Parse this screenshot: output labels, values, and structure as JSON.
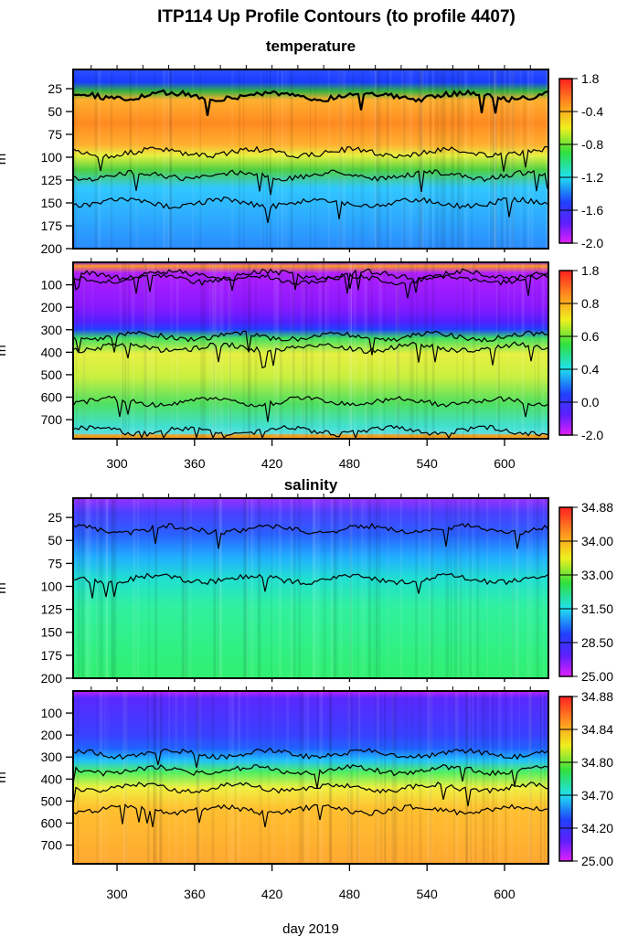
{
  "title": "ITP114 Up Profile Contours (to profile 4407)",
  "xlabel": "day 2019",
  "ylabel": "m",
  "section_titles": [
    "temperature",
    "salinity"
  ],
  "chart_data": [
    {
      "type": "heatmap",
      "variable": "temperature",
      "range": "upper",
      "xlim": [
        266,
        634
      ],
      "ylim": [
        200,
        4
      ],
      "xticks": [
        300,
        360,
        420,
        480,
        540,
        600
      ],
      "yticks": [
        25,
        50,
        75,
        100,
        125,
        150,
        175,
        200
      ],
      "colorbar_ticks": [
        "1.8",
        "-0.4",
        "-0.8",
        "-1.2",
        "-1.6",
        "-2.0"
      ],
      "contour_depths_approx": [
        33,
        95,
        120,
        150
      ],
      "colors": [
        "#1a44ff",
        "#ffa024",
        "#f0e040",
        "#50d040",
        "#30b8ff",
        "#2a8cff"
      ]
    },
    {
      "type": "heatmap",
      "variable": "temperature",
      "range": "full",
      "xlim": [
        266,
        634
      ],
      "ylim": [
        785,
        0
      ],
      "xticks": [
        300,
        360,
        420,
        480,
        540,
        600
      ],
      "yticks": [
        100,
        200,
        300,
        400,
        500,
        600,
        700
      ],
      "colorbar_ticks": [
        "1.8",
        "0.8",
        "0.6",
        "0.4",
        "0.0",
        "-2.0"
      ],
      "contour_depths_approx": [
        55,
        75,
        330,
        380,
        620,
        750
      ],
      "colors": [
        "#8a1cff",
        "#3a3cff",
        "#40e060",
        "#e8f040",
        "#9af040",
        "#40e0d0"
      ]
    },
    {
      "type": "heatmap",
      "variable": "salinity",
      "range": "upper",
      "xlim": [
        266,
        634
      ],
      "ylim": [
        200,
        4
      ],
      "xticks": [
        300,
        360,
        420,
        480,
        540,
        600
      ],
      "yticks": [
        25,
        50,
        75,
        100,
        125,
        150,
        175,
        200
      ],
      "colorbar_ticks": [
        "34.88",
        "34.00",
        "33.00",
        "31.50",
        "28.50",
        "25.00"
      ],
      "contour_depths_approx": [
        38,
        92
      ],
      "colors": [
        "#9030ff",
        "#3c48ff",
        "#20a0ff",
        "#20e0d0",
        "#30f070"
      ]
    },
    {
      "type": "heatmap",
      "variable": "salinity",
      "range": "full",
      "xlim": [
        266,
        634
      ],
      "ylim": [
        785,
        0
      ],
      "xticks": [
        300,
        360,
        420,
        480,
        540,
        600
      ],
      "yticks": [
        100,
        200,
        300,
        400,
        500,
        600,
        700
      ],
      "colorbar_ticks": [
        "34.88",
        "34.84",
        "34.80",
        "34.70",
        "34.20",
        "25.00"
      ],
      "contour_depths_approx": [
        285,
        360,
        440,
        540
      ],
      "colors": [
        "#c020ff",
        "#4a28ff",
        "#2060ff",
        "#20d0ff",
        "#50f050",
        "#f0f040",
        "#ffb030"
      ]
    }
  ]
}
